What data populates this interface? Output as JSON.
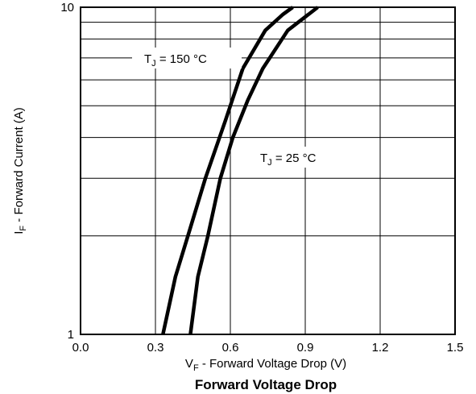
{
  "chart_data": {
    "type": "line",
    "title": "Forward Voltage Drop",
    "xlabel": {
      "main": "V",
      "sub": "F",
      "rest": " - Forward Voltage Drop (V)"
    },
    "ylabel": {
      "main": "I",
      "sub": "F",
      "rest": "  - Forward Current (A)"
    },
    "xlim": [
      0.0,
      1.5
    ],
    "ylim": [
      1,
      10
    ],
    "yscale": "log",
    "grid": true,
    "x_tick_labels": [
      "0.0",
      "0.3",
      "0.6",
      "0.9",
      "1.2",
      "1.5"
    ],
    "y_tick_labels": [
      "1",
      "10"
    ],
    "series": [
      {
        "name": {
          "main": "T",
          "sub": "J",
          "rest": " = 150  °C"
        },
        "x": [
          0.33,
          0.38,
          0.43,
          0.5,
          0.58,
          0.65,
          0.74,
          0.81,
          0.85
        ],
        "y": [
          1.0,
          1.5,
          2.0,
          3.0,
          4.5,
          6.5,
          8.5,
          9.5,
          10.0
        ]
      },
      {
        "name": {
          "main": "T",
          "sub": "J",
          "rest": " = 25  °C"
        },
        "x": [
          0.44,
          0.47,
          0.51,
          0.56,
          0.61,
          0.67,
          0.73,
          0.83,
          0.95
        ],
        "y": [
          1.0,
          1.5,
          2.0,
          3.0,
          4.0,
          5.2,
          6.5,
          8.5,
          10.0
        ]
      }
    ]
  }
}
